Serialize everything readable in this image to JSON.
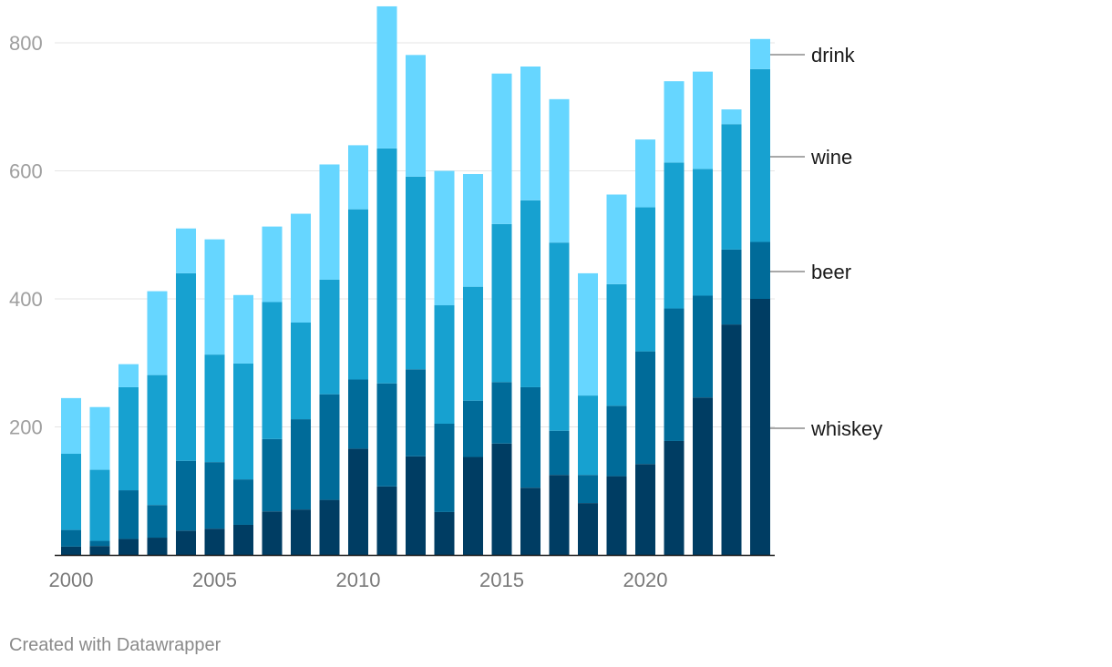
{
  "chart_data": {
    "type": "bar",
    "stacked": true,
    "title": "",
    "xlabel": "",
    "ylabel": "",
    "ylim": [
      0,
      860
    ],
    "yticks": [
      200,
      400,
      600,
      800
    ],
    "xticks": [
      "2000",
      "2005",
      "2010",
      "2015",
      "2020"
    ],
    "grid": true,
    "legend_position": "right, inline labels",
    "categories": [
      "2000",
      "2001",
      "2002",
      "2003",
      "2004",
      "2005",
      "2006",
      "2007",
      "2008",
      "2009",
      "2010",
      "2011",
      "2012",
      "2013",
      "2014",
      "2015",
      "2016",
      "2017",
      "2018",
      "2019",
      "2020",
      "2021",
      "2022",
      "2023",
      "2024"
    ],
    "series": [
      {
        "name": "whiskey",
        "color": "#003d63",
        "values": [
          13,
          14,
          25,
          27,
          38,
          41,
          47,
          68,
          71,
          86,
          166,
          107,
          154,
          67,
          153,
          174,
          105,
          125,
          81,
          123,
          142,
          178,
          246,
          360,
          400
        ]
      },
      {
        "name": "beer",
        "color": "#006b99",
        "values": [
          26,
          8,
          76,
          51,
          109,
          104,
          71,
          113,
          141,
          165,
          108,
          161,
          136,
          138,
          88,
          96,
          157,
          69,
          44,
          110,
          176,
          207,
          159,
          117,
          89
        ]
      },
      {
        "name": "wine",
        "color": "#17a1d0",
        "values": [
          119,
          111,
          161,
          203,
          293,
          168,
          181,
          214,
          151,
          179,
          266,
          367,
          301,
          185,
          178,
          247,
          292,
          294,
          124,
          190,
          225,
          228,
          198,
          196,
          270
        ]
      },
      {
        "name": "drink",
        "color": "#66d6ff",
        "values": [
          87,
          98,
          36,
          131,
          70,
          180,
          107,
          118,
          170,
          180,
          100,
          222,
          190,
          210,
          176,
          235,
          209,
          224,
          191,
          140,
          106,
          127,
          152,
          23,
          47
        ]
      }
    ]
  },
  "footer": {
    "credit": "Created with Datawrapper"
  },
  "colors": {
    "grid": "#e5e5e5",
    "axis": "#1a1a1a",
    "connector": "#8c8c8c"
  }
}
